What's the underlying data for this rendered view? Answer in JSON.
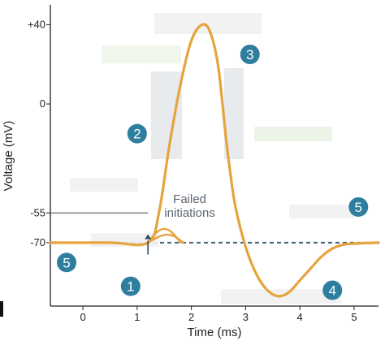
{
  "chart_data": {
    "type": "line",
    "xlabel": "Time (ms)",
    "ylabel": "Voltage (mV)",
    "xlim": [
      -0.6,
      5.45
    ],
    "ylim": [
      -102,
      50
    ],
    "x_ticks": [
      0,
      1,
      2,
      3,
      4,
      5
    ],
    "y_ticks": [
      {
        "value": 40,
        "label": "+40"
      },
      {
        "value": 0,
        "label": "0"
      },
      {
        "value": -55,
        "label": "-55"
      },
      {
        "value": -70,
        "label": "-70"
      }
    ],
    "series": [
      {
        "color": "#e7a33e",
        "x": [
          -0.6,
          0.5,
          1.2,
          1.4,
          1.6,
          1.8,
          2.0,
          2.2,
          2.35,
          2.5,
          2.65,
          2.8,
          3.0,
          3.2,
          3.4,
          3.6,
          3.8,
          4.0,
          4.2,
          4.4,
          4.6,
          4.8,
          5.0,
          5.2,
          5.45
        ],
        "y": [
          -70,
          -70,
          -70,
          -55,
          -20,
          10,
          32,
          40,
          36,
          18,
          -20,
          -50,
          -72,
          -86,
          -94,
          -97,
          -95,
          -89,
          -83,
          -77,
          -73,
          -71,
          -70.5,
          -70.2,
          -70
        ]
      },
      {
        "color": "#e7a33e",
        "x": [
          1.2,
          1.35,
          1.5,
          1.65,
          1.8
        ],
        "y": [
          -70,
          -65,
          -63,
          -65,
          -70
        ]
      },
      {
        "color": "#e7a33e",
        "x": [
          1.2,
          1.4,
          1.55,
          1.7,
          1.85
        ],
        "y": [
          -70,
          -67,
          -66,
          -67,
          -70
        ]
      }
    ],
    "reference_lines": [
      {
        "y": -70,
        "style": "dashed",
        "color": "#3f6478"
      },
      {
        "y": -55,
        "style": "solid",
        "color": "#444444",
        "x_start": -0.6,
        "x_end": 1.2
      }
    ],
    "stimulus_arrow": {
      "x": 1.2
    },
    "annotations": [
      {
        "text": "Failed",
        "x": 1.97,
        "y": -50
      },
      {
        "text": "initiations",
        "x": 1.97,
        "y": -57
      }
    ],
    "markers": [
      {
        "label": "1",
        "x": 0.88,
        "y": -92
      },
      {
        "label": "2",
        "x": 1.0,
        "y": -15
      },
      {
        "label": "3",
        "x": 3.08,
        "y": 25
      },
      {
        "label": "4",
        "x": 4.6,
        "y": -94
      },
      {
        "label": "5",
        "x": 5.08,
        "y": -52
      },
      {
        "label": "5",
        "x": -0.3,
        "y": -80
      }
    ],
    "marker_color": "#2e7e9e",
    "grid": false,
    "legend": "none"
  }
}
